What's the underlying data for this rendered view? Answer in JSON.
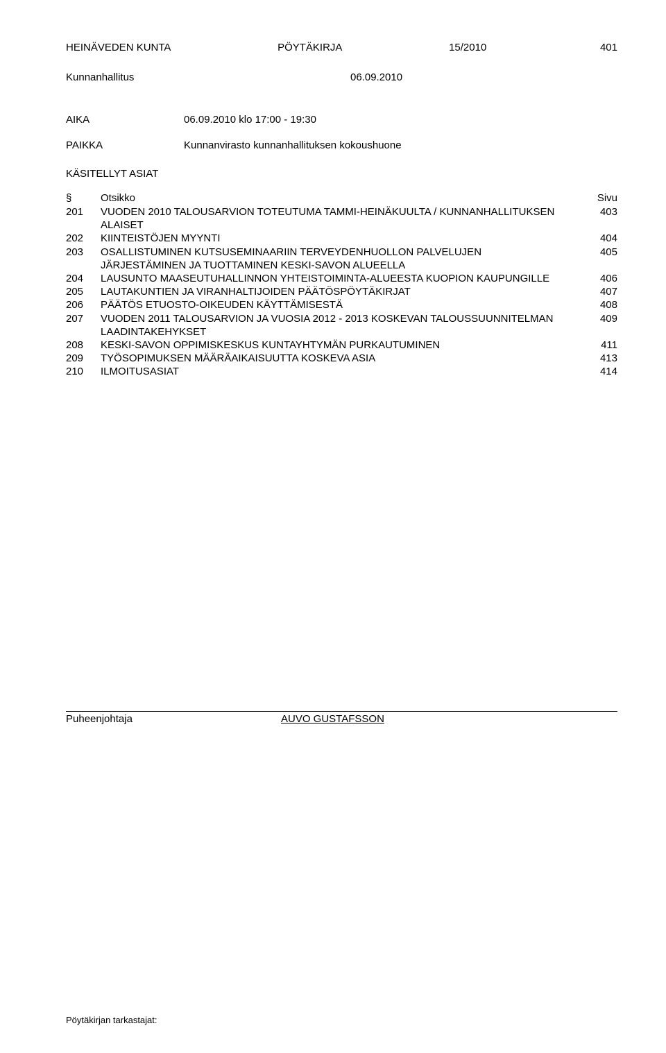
{
  "header": {
    "org": "HEINÄVEDEN KUNTA",
    "docType": "PÖYTÄKIRJA",
    "docNum": "15/2010",
    "pageNum": "401"
  },
  "subheader": {
    "body": "Kunnanhallitus",
    "date": "06.09.2010"
  },
  "aika": {
    "label": "AIKA",
    "value": "06.09.2010 klo 17:00 - 19:30"
  },
  "paikka": {
    "label": "PAIKKA",
    "value": "Kunnanvirasto kunnanhallituksen kokoushuone"
  },
  "kasitellyt": "KÄSITELLYT ASIAT",
  "tableHead": {
    "section": "§",
    "title": "Otsikko",
    "page": "Sivu"
  },
  "agenda": [
    {
      "num": "201",
      "title": "VUODEN 2010 TALOUSARVION TOTEUTUMA TAMMI-HEINÄKUULTA / KUNNANHALLITUKSEN ALAISET",
      "page": "403"
    },
    {
      "num": "202",
      "title": "KIINTEISTÖJEN MYYNTI",
      "page": "404"
    },
    {
      "num": "203",
      "title": "OSALLISTUMINEN KUTSUSEMINAARIIN TERVEYDENHUOLLON PALVELUJEN JÄRJESTÄMINEN JA TUOTTAMINEN KESKI-SAVON ALUEELLA",
      "page": "405"
    },
    {
      "num": "204",
      "title": "LAUSUNTO MAASEUTUHALLINNON YHTEISTOIMINTA-ALUEESTA KUOPION KAUPUNGILLE",
      "page": "406"
    },
    {
      "num": "205",
      "title": "LAUTAKUNTIEN JA VIRANHALTIJOIDEN PÄÄTÖSPÖYTÄKIRJAT",
      "page": "407"
    },
    {
      "num": "206",
      "title": "PÄÄTÖS ETUOSTO-OIKEUDEN KÄYTTÄMISESTÄ",
      "page": "408"
    },
    {
      "num": "207",
      "title": "VUODEN 2011 TALOUSARVION JA VUOSIA 2012 - 2013 KOSKEVAN TALOUSSUUNNITELMAN LAADINTAKEHYKSET",
      "page": "409"
    },
    {
      "num": "208",
      "title": "KESKI-SAVON OPPIMISKESKUS KUNTAYHTYMÄN PURKAUTUMINEN",
      "page": "411"
    },
    {
      "num": "209",
      "title": "TYÖSOPIMUKSEN MÄÄRÄAIKAISUUTTA KOSKEVA ASIA",
      "page": "413"
    },
    {
      "num": "210",
      "title": "ILMOITUSASIAT",
      "page": "414"
    }
  ],
  "chair": {
    "label": "Puheenjohtaja",
    "name": "AUVO GUSTAFSSON"
  },
  "footer": {
    "left": "Pöytäkirjan tarkastajat:"
  }
}
